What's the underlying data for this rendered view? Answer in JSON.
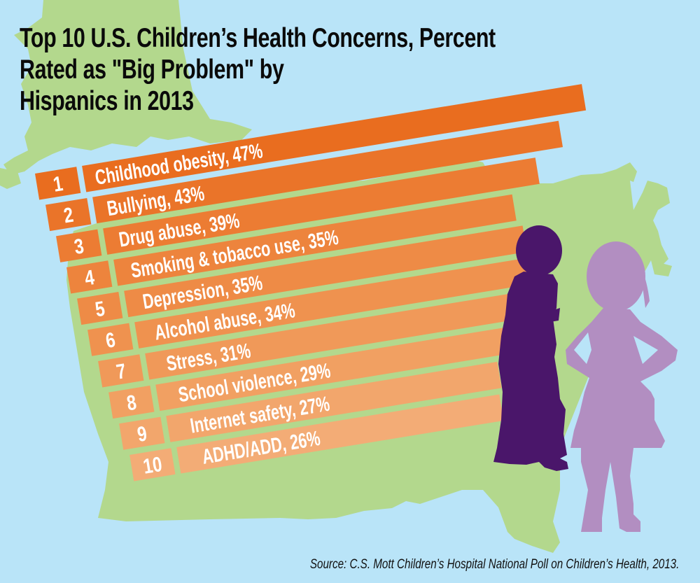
{
  "title": {
    "line1": "Top 10 U.S. Children’s Health Concerns, Percent",
    "line2": "Rated as \"Big Problem\" by",
    "line3": "Hispanics in 2013"
  },
  "source": "Source: C.S. Mott Children’s Hospital National Poll on Children’s Health, 2013.",
  "colors": {
    "background": "#b9e4f8",
    "map": "#b3d88d",
    "boy_silhouette": "#4a166a",
    "girl_silhouette": "#b28ec1",
    "label_text": "#ffffff",
    "bar_colors": [
      "#e96d1f",
      "#ea7429",
      "#ec7c33",
      "#ed843d",
      "#ee8b46",
      "#ef924f",
      "#f09959",
      "#f1a062",
      "#f2a66c",
      "#f3ac76"
    ]
  },
  "decorations": {
    "background_map": "us-map-icon",
    "figures": [
      "boy-silhouette-icon",
      "girl-silhouette-icon"
    ]
  },
  "chart_data": {
    "type": "bar",
    "orientation": "horizontal",
    "title": "Top 10 U.S. Children’s Health Concerns, Percent Rated as \"Big Problem\" by Hispanics in 2013",
    "xlabel": "",
    "ylabel": "",
    "unit": "%",
    "grid": false,
    "legend": "none",
    "ranks": [
      "1",
      "2",
      "3",
      "4",
      "5",
      "6",
      "7",
      "8",
      "9",
      "10"
    ],
    "categories": [
      "Childhood obesity",
      "Bullying",
      "Drug abuse",
      "Smoking & tobacco use",
      "Depression",
      "Alcohol abuse",
      "Stress",
      "School violence",
      "Internet safety",
      "ADHD/ADD"
    ],
    "values": [
      47,
      43,
      39,
      35,
      35,
      34,
      31,
      29,
      27,
      26
    ],
    "labels": [
      "Childhood obesity, 47%",
      "Bullying, 43%",
      "Drug abuse, 39%",
      "Smoking & tobacco use, 35%",
      "Depression, 35%",
      "Alcohol abuse, 34%",
      "Stress, 31%",
      "School violence, 29%",
      "Internet safety, 27%",
      "ADHD/ADD, 26%"
    ],
    "source": "Source: C.S. Mott Children’s Hospital National Poll on Children’s Health, 2013."
  }
}
